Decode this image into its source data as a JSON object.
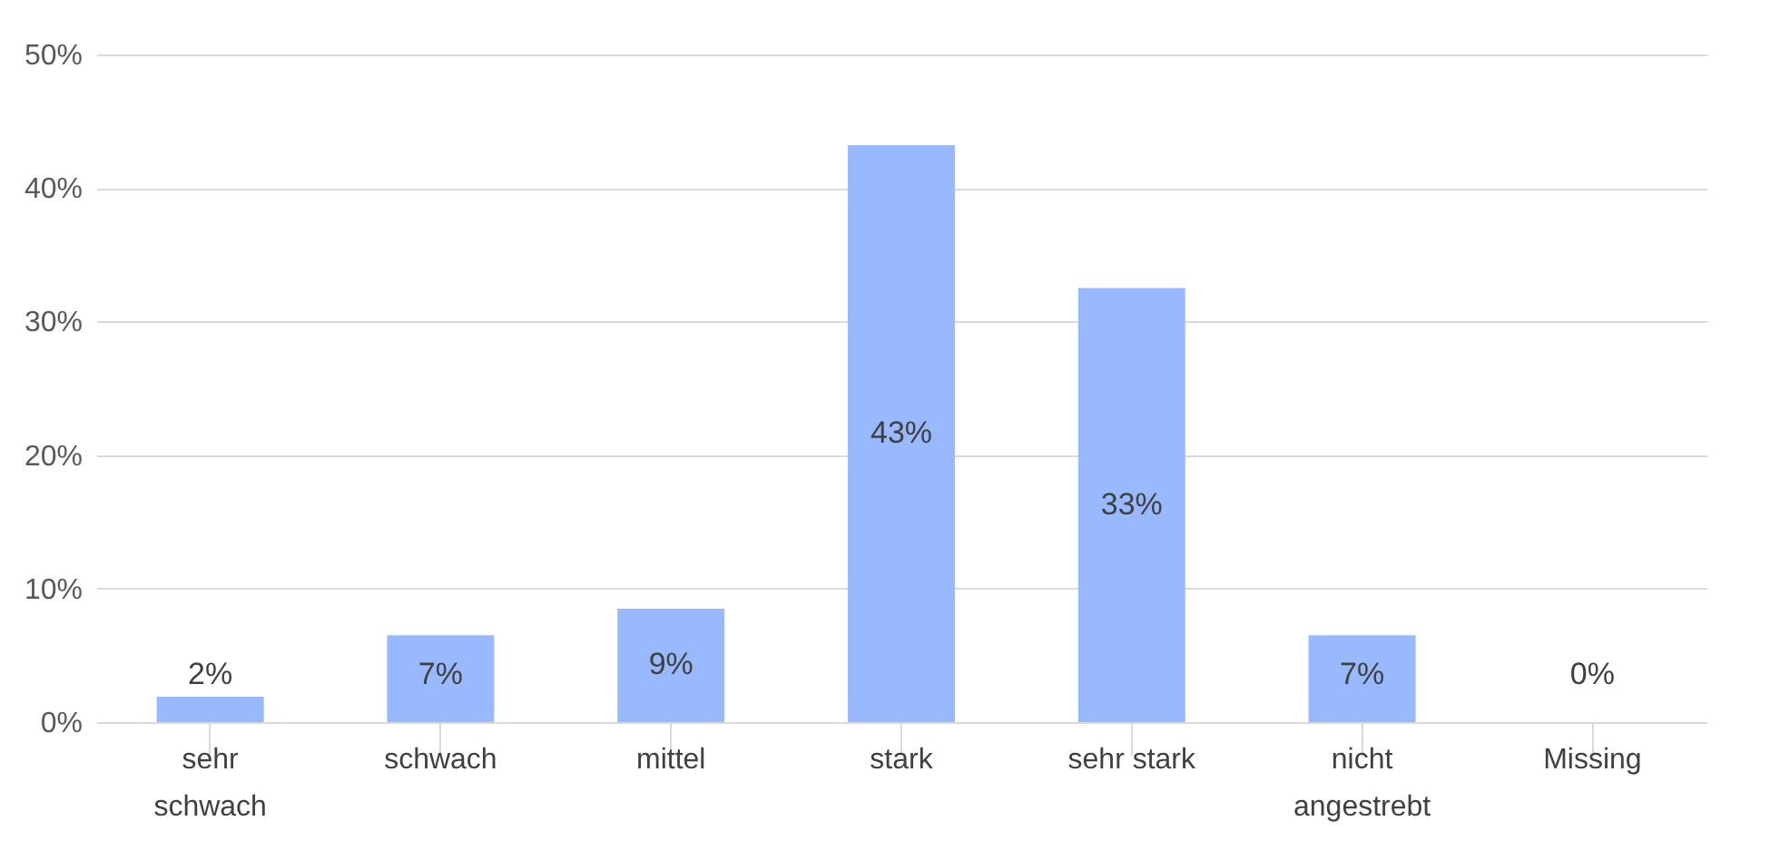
{
  "chart_data": {
    "type": "bar",
    "categories": [
      "sehr\nschwach",
      "schwach",
      "mittel",
      "stark",
      "sehr stark",
      "nicht\nangestrebt",
      "Missing"
    ],
    "values": [
      1.9,
      6.5,
      8.5,
      43.2,
      32.5,
      6.5,
      0
    ],
    "value_labels": [
      "2%",
      "7%",
      "9%",
      "43%",
      "33%",
      "7%",
      "0%"
    ],
    "color": "#99b9ff",
    "ylim": [
      0,
      50
    ],
    "yticks": [
      {
        "value": 0,
        "label": "0%"
      },
      {
        "value": 10,
        "label": "10%"
      },
      {
        "value": 20,
        "label": "20%"
      },
      {
        "value": 30,
        "label": "30%"
      },
      {
        "value": 40,
        "label": "40%"
      },
      {
        "value": 50,
        "label": "50%"
      }
    ],
    "grid": "y"
  }
}
